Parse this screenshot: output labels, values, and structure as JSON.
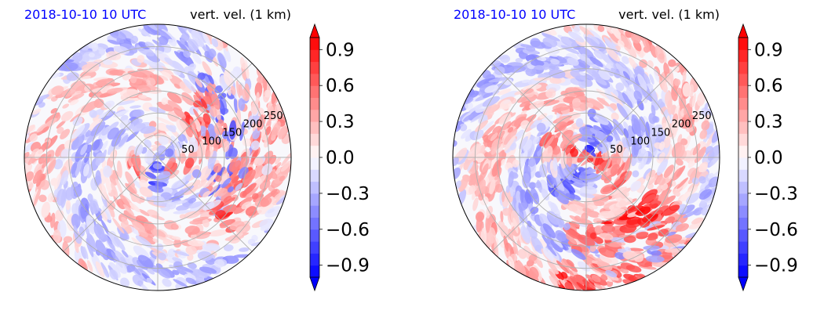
{
  "chart_data": [
    {
      "type": "heatmap",
      "projection": "polar",
      "title_left": "2018-10-10 10 UTC",
      "title_right": "vert. vel. (1 km)",
      "radial_ticks": [
        50,
        100,
        150,
        200,
        250
      ],
      "grid": true,
      "colormap": "bwr",
      "colorbar": {
        "ticks": [
          "−0.9",
          "−0.6",
          "−0.3",
          "0.0",
          "0.3",
          "0.6",
          "0.9"
        ],
        "vmin": -1.0,
        "vmax": 1.0,
        "extend": "both"
      }
    },
    {
      "type": "heatmap",
      "projection": "polar",
      "title_left": "2018-10-10 10 UTC",
      "title_right": "vert. vel. (1 km)",
      "radial_ticks": [
        50,
        100,
        150,
        200,
        250
      ],
      "grid": true,
      "colormap": "bwr",
      "colorbar": {
        "ticks": [
          "−0.9",
          "−0.6",
          "−0.3",
          "0.0",
          "0.3",
          "0.6",
          "0.9"
        ],
        "vmin": -1.0,
        "vmax": 1.0,
        "extend": "both"
      }
    }
  ],
  "colors": {
    "positive": "#ff0000",
    "negative": "#0000ff",
    "neutral": "#ffffff",
    "title_left": "#0000ff"
  }
}
